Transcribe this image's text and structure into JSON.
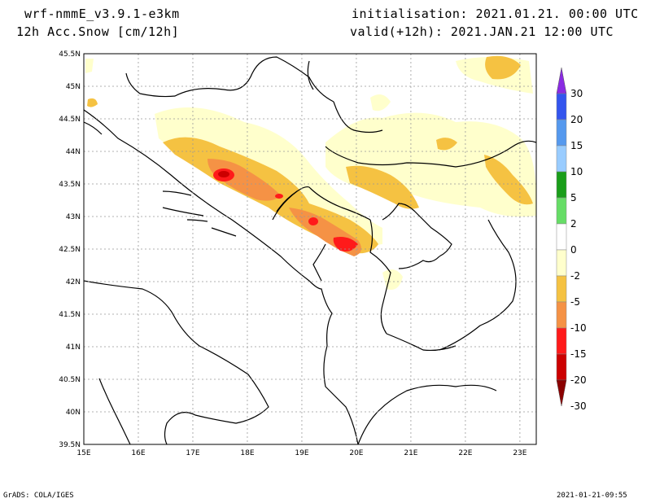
{
  "header": {
    "model": "wrf-nmmE_v3.9.1-e3km",
    "field": "12h Acc.Snow [cm/12h]",
    "init": "initialisation: 2021.01.21.  00:00 UTC",
    "valid": "valid(+12h): 2021.JAN.21 12:00 UTC"
  },
  "map": {
    "lon_range": [
      15,
      23.3
    ],
    "lat_range": [
      39.5,
      45.5
    ],
    "lat_ticks": [
      "45.5N",
      "45N",
      "44.5N",
      "44N",
      "43.5N",
      "43N",
      "42.5N",
      "42N",
      "41.5N",
      "41N",
      "40.5N",
      "40N",
      "39.5N"
    ],
    "lon_ticks": [
      "15E",
      "16E",
      "17E",
      "18E",
      "19E",
      "20E",
      "21E",
      "22E",
      "23E"
    ],
    "grid": true
  },
  "colorbar": {
    "labels": [
      "30",
      "20",
      "15",
      "10",
      "5",
      "2",
      "0",
      "-2",
      "-5",
      "-10",
      "-15",
      "-20",
      "-30"
    ],
    "colors": [
      "#8a2be2",
      "#3355ee",
      "#5599ee",
      "#99ccff",
      "#1a9e1a",
      "#66dd66",
      "#ffffff",
      "#ffffcc",
      "#f5c242",
      "#f59245",
      "#ff1a1a",
      "#cc0000",
      "#8b0000"
    ]
  },
  "footer": {
    "left": "GrADS: COLA/IGES",
    "right": "2021-01-21-09:55"
  }
}
